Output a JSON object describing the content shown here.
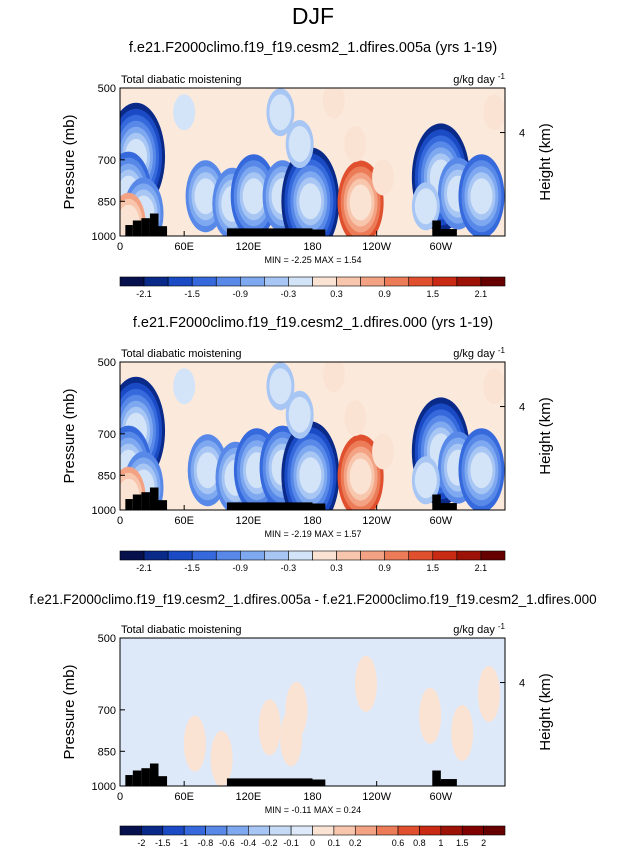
{
  "figure_title": "DJF",
  "chart_data": [
    {
      "type": "heatmap",
      "title": "f.e21.F2000climo.f19_f19.cesm2_1.dfires.005a (yrs 1-19)",
      "variable": "Total diabatic moistening",
      "units": "g/kg day",
      "units_exponent": "-1",
      "ylabel": "Pressure (mb)",
      "y2label": "Height (km)",
      "yticks": [
        "500",
        "700",
        "850",
        "1000"
      ],
      "y2ticks": [
        "4"
      ],
      "xticks": [
        "0",
        "60E",
        "120E",
        "180",
        "120W",
        "60W"
      ],
      "stats": {
        "min_label": "MIN =",
        "min": "-2.25",
        "max_label": "MAX =",
        "max": "1.54"
      },
      "colorbar": {
        "levels": [
          "-2.1",
          "-1.8",
          "-1.5",
          "-1.2",
          "-0.9",
          "-0.6",
          "-0.3",
          "0",
          "0.3",
          "0.6",
          "0.9",
          "1.2",
          "1.5",
          "1.8",
          "2.1"
        ],
        "labeled": [
          "-2.1",
          "-1.5",
          "-0.9",
          "-0.3",
          "0.3",
          "0.9",
          "1.5",
          "2.1"
        ],
        "colors": [
          "#06104c",
          "#0a2a8a",
          "#1a4ac4",
          "#3569dc",
          "#5889e8",
          "#7ea8ef",
          "#a8c6f4",
          "#d4e4f8",
          "#fbe3d4",
          "#f7c6ac",
          "#f3a283",
          "#ec7b58",
          "#e1502e",
          "#c82a14",
          "#9c1207",
          "#660000"
        ]
      },
      "features": [
        {
          "lon": 15,
          "lev": 690,
          "value": -2.2
        },
        {
          "lon": 8,
          "lev": 820,
          "value": -1.5
        },
        {
          "lon": 22,
          "lev": 900,
          "value": -1.2
        },
        {
          "lon": 8,
          "lev": 940,
          "value": 0.9
        },
        {
          "lon": 80,
          "lev": 830,
          "value": -1.3
        },
        {
          "lon": 105,
          "lev": 860,
          "value": -1.2
        },
        {
          "lon": 125,
          "lev": 830,
          "value": -1.4
        },
        {
          "lon": 152,
          "lev": 830,
          "value": -1.3
        },
        {
          "lon": 178,
          "lev": 850,
          "value": -2.1
        },
        {
          "lon": 168,
          "lev": 650,
          "value": -0.6
        },
        {
          "lon": 150,
          "lev": 560,
          "value": -0.6
        },
        {
          "lon": 225,
          "lev": 855,
          "value": 1.5
        },
        {
          "lon": 220,
          "lev": 650,
          "value": 0.4
        },
        {
          "lon": 200,
          "lev": 530,
          "value": 0.3
        },
        {
          "lon": 246,
          "lev": 760,
          "value": 0.3
        },
        {
          "lon": 300,
          "lev": 760,
          "value": -2.1
        },
        {
          "lon": 316,
          "lev": 820,
          "value": -1.2
        },
        {
          "lon": 338,
          "lev": 830,
          "value": -1.4
        },
        {
          "lon": 286,
          "lev": 870,
          "value": -0.5
        },
        {
          "lon": 350,
          "lev": 560,
          "value": 0.3
        },
        {
          "lon": 60,
          "lev": 560,
          "value": -0.3
        }
      ]
    },
    {
      "type": "heatmap",
      "title": "f.e21.F2000climo.f19_f19.cesm2_1.dfires.000 (yrs 1-19)",
      "variable": "Total diabatic moistening",
      "units": "g/kg day",
      "units_exponent": "-1",
      "ylabel": "Pressure (mb)",
      "y2label": "Height (km)",
      "yticks": [
        "500",
        "700",
        "850",
        "1000"
      ],
      "y2ticks": [
        "4"
      ],
      "xticks": [
        "0",
        "60E",
        "120E",
        "180",
        "120W",
        "60W"
      ],
      "stats": {
        "min_label": "MIN =",
        "min": "-2.19",
        "max_label": "MAX =",
        "max": "1.57"
      },
      "colorbar": {
        "levels": [
          "-2.1",
          "-1.8",
          "-1.5",
          "-1.2",
          "-0.9",
          "-0.6",
          "-0.3",
          "0",
          "0.3",
          "0.6",
          "0.9",
          "1.2",
          "1.5",
          "1.8",
          "2.1"
        ],
        "labeled": [
          "-2.1",
          "-1.5",
          "-0.9",
          "-0.3",
          "0.3",
          "0.9",
          "1.5",
          "2.1"
        ],
        "colors": [
          "#06104c",
          "#0a2a8a",
          "#1a4ac4",
          "#3569dc",
          "#5889e8",
          "#7ea8ef",
          "#a8c6f4",
          "#d4e4f8",
          "#fbe3d4",
          "#f7c6ac",
          "#f3a283",
          "#ec7b58",
          "#e1502e",
          "#c82a14",
          "#9c1207",
          "#660000"
        ]
      },
      "features": [
        {
          "lon": 15,
          "lev": 690,
          "value": -2.1
        },
        {
          "lon": 8,
          "lev": 820,
          "value": -1.5
        },
        {
          "lon": 22,
          "lev": 900,
          "value": -1.2
        },
        {
          "lon": 8,
          "lev": 940,
          "value": 0.9
        },
        {
          "lon": 82,
          "lev": 830,
          "value": -1.3
        },
        {
          "lon": 108,
          "lev": 860,
          "value": -1.2
        },
        {
          "lon": 128,
          "lev": 830,
          "value": -1.4
        },
        {
          "lon": 152,
          "lev": 820,
          "value": -1.4
        },
        {
          "lon": 178,
          "lev": 850,
          "value": -2.1
        },
        {
          "lon": 168,
          "lev": 640,
          "value": -0.6
        },
        {
          "lon": 150,
          "lev": 560,
          "value": -0.6
        },
        {
          "lon": 225,
          "lev": 855,
          "value": 1.5
        },
        {
          "lon": 220,
          "lev": 650,
          "value": 0.4
        },
        {
          "lon": 200,
          "lev": 530,
          "value": 0.3
        },
        {
          "lon": 246,
          "lev": 760,
          "value": 0.3
        },
        {
          "lon": 300,
          "lev": 760,
          "value": -2.1
        },
        {
          "lon": 316,
          "lev": 820,
          "value": -1.3
        },
        {
          "lon": 338,
          "lev": 830,
          "value": -1.4
        },
        {
          "lon": 286,
          "lev": 870,
          "value": -0.5
        },
        {
          "lon": 350,
          "lev": 560,
          "value": 0.3
        },
        {
          "lon": 60,
          "lev": 560,
          "value": -0.3
        }
      ]
    },
    {
      "type": "heatmap",
      "title": "f.e21.F2000climo.f19_f19.cesm2_1.dfires.005a - f.e21.F2000climo.f19_f19.cesm2_1.dfires.000",
      "variable": "Total diabatic moistening",
      "units": "g/kg day",
      "units_exponent": "-1",
      "ylabel": "Pressure (mb)",
      "y2label": "Height (km)",
      "yticks": [
        "500",
        "700",
        "850",
        "1000"
      ],
      "y2ticks": [
        "4"
      ],
      "xticks": [
        "0",
        "60E",
        "120E",
        "180",
        "120W",
        "60W"
      ],
      "stats": {
        "min_label": "MIN =",
        "min": "-0.11",
        "max_label": "MAX =",
        "max": "0.24"
      },
      "colorbar": {
        "levels": [
          "-2",
          "-1.5",
          "-1",
          "-0.8",
          "-0.6",
          "-0.4",
          "-0.2",
          "-0.1",
          "0",
          "0.1",
          "0.2",
          "0.4",
          "0.6",
          "0.8",
          "1",
          "1.5",
          "2"
        ],
        "labeled": [
          "-2",
          "-1.5",
          "-1",
          "-0.8",
          "-0.6",
          "-0.4",
          "-0.2",
          "-0.1",
          "0",
          "0.1",
          "0.2",
          "0.6",
          "0.8",
          "1",
          "1.5",
          "2"
        ],
        "colors": [
          "#06104c",
          "#0a2a8a",
          "#1a4ac4",
          "#3569dc",
          "#5889e8",
          "#7ea8ef",
          "#a8c6f4",
          "#c6daf6",
          "#dde9f9",
          "#fbe3d4",
          "#f7c6ac",
          "#f3a283",
          "#ec7b58",
          "#e1502e",
          "#c82a14",
          "#9c1207",
          "#800000",
          "#660000"
        ]
      },
      "features": [
        {
          "lon": 165,
          "lev": 700,
          "value": 0.15
        },
        {
          "lon": 160,
          "lev": 800,
          "value": 0.12
        },
        {
          "lon": 140,
          "lev": 760,
          "value": 0.12
        },
        {
          "lon": 95,
          "lev": 880,
          "value": 0.12
        },
        {
          "lon": 70,
          "lev": 820,
          "value": 0.12
        },
        {
          "lon": 230,
          "lev": 620,
          "value": 0.12
        },
        {
          "lon": 290,
          "lev": 720,
          "value": 0.12
        },
        {
          "lon": 320,
          "lev": 780,
          "value": 0.12
        },
        {
          "lon": 345,
          "lev": 650,
          "value": 0.12
        }
      ]
    }
  ]
}
